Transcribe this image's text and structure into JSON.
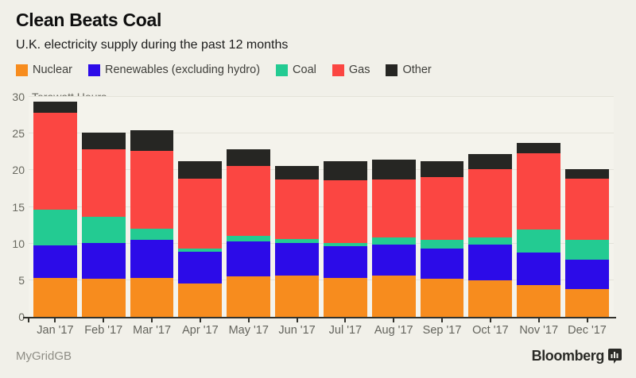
{
  "header": {
    "title": "Clean Beats Coal",
    "subtitle": "U.K. electricity supply during the past 12 months"
  },
  "chart_data": {
    "type": "bar",
    "stacked": true,
    "title": "Clean Beats Coal",
    "subtitle": "U.K. electricity supply during the past 12 months",
    "unit_label": "Terawatt Hours",
    "categories": [
      "Jan '17",
      "Feb '17",
      "Mar '17",
      "Apr '17",
      "May '17",
      "Jun '17",
      "Jul '17",
      "Aug '17",
      "Sep '17",
      "Oct '17",
      "Nov '17",
      "Dec '17"
    ],
    "series": [
      {
        "name": "Nuclear",
        "color": "#F78C1E",
        "values": [
          5.3,
          5.2,
          5.3,
          4.5,
          5.5,
          5.6,
          5.3,
          5.6,
          5.2,
          5.0,
          4.3,
          3.8
        ]
      },
      {
        "name": "Renewables (excluding hydro)",
        "color": "#2C0BE8",
        "values": [
          4.5,
          4.9,
          5.2,
          4.4,
          4.8,
          4.5,
          4.3,
          4.3,
          4.1,
          4.9,
          4.5,
          4.0
        ]
      },
      {
        "name": "Coal",
        "color": "#23CB92",
        "values": [
          4.8,
          3.6,
          1.5,
          0.4,
          0.7,
          0.5,
          0.5,
          0.9,
          1.2,
          0.9,
          3.1,
          2.7
        ]
      },
      {
        "name": "Gas",
        "color": "#FB4642",
        "values": [
          13.2,
          9.2,
          10.6,
          9.5,
          9.6,
          8.1,
          8.5,
          7.9,
          8.6,
          9.4,
          10.4,
          8.4
        ]
      },
      {
        "name": "Other",
        "color": "#262623",
        "values": [
          1.6,
          2.2,
          2.9,
          2.4,
          2.3,
          1.9,
          2.6,
          2.7,
          2.1,
          2.0,
          1.4,
          1.3
        ]
      }
    ],
    "ylim": [
      0,
      30
    ],
    "yticks": [
      0,
      5,
      10,
      15,
      20,
      25,
      30
    ],
    "grid": true,
    "legend_position": "top"
  },
  "footer": {
    "source": "MyGridGB",
    "brand": "Bloomberg"
  },
  "colors": {
    "background": "#F1F0E9",
    "plot_background": "#F4F3EC",
    "gridline": "#E3E2D9",
    "axis": "#32322C",
    "axis_text": "#68685F"
  }
}
